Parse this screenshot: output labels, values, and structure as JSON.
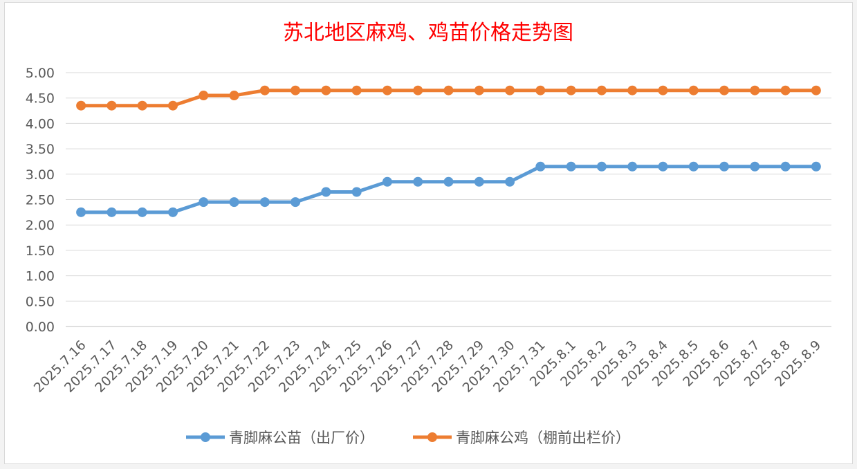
{
  "chart_data": {
    "type": "line",
    "title": "苏北地区麻鸡、鸡苗价格走势图",
    "xlabel": "",
    "ylabel": "",
    "ylim": [
      0,
      5
    ],
    "yticks": [
      "0.00",
      "0.50",
      "1.00",
      "1.50",
      "2.00",
      "2.50",
      "3.00",
      "3.50",
      "4.00",
      "4.50",
      "5.00"
    ],
    "grid": true,
    "legend_position": "bottom",
    "categories": [
      "2025.7.16",
      "2025.7.17",
      "2025.7.18",
      "2025.7.19",
      "2025.7.20",
      "2025.7.21",
      "2025.7.22",
      "2025.7.23",
      "2025.7.24",
      "2025.7.25",
      "2025.7.26",
      "2025.7.27",
      "2025.7.28",
      "2025.7.29",
      "2025.7.30",
      "2025.7.31",
      "2025.8.1",
      "2025.8.2",
      "2025.8.3",
      "2025.8.4",
      "2025.8.5",
      "2025.8.6",
      "2025.8.7",
      "2025.8.8",
      "2025.8.9"
    ],
    "series": [
      {
        "name": "青脚麻公苗（出厂价）",
        "color": "#5b9bd5",
        "values": [
          2.25,
          2.25,
          2.25,
          2.25,
          2.45,
          2.45,
          2.45,
          2.45,
          2.65,
          2.65,
          2.85,
          2.85,
          2.85,
          2.85,
          2.85,
          3.15,
          3.15,
          3.15,
          3.15,
          3.15,
          3.15,
          3.15,
          3.15,
          3.15,
          3.15
        ]
      },
      {
        "name": "青脚麻公鸡（棚前出栏价）",
        "color": "#ed7d31",
        "values": [
          4.35,
          4.35,
          4.35,
          4.35,
          4.55,
          4.55,
          4.65,
          4.65,
          4.65,
          4.65,
          4.65,
          4.65,
          4.65,
          4.65,
          4.65,
          4.65,
          4.65,
          4.65,
          4.65,
          4.65,
          4.65,
          4.65,
          4.65,
          4.65,
          4.65
        ]
      }
    ]
  }
}
